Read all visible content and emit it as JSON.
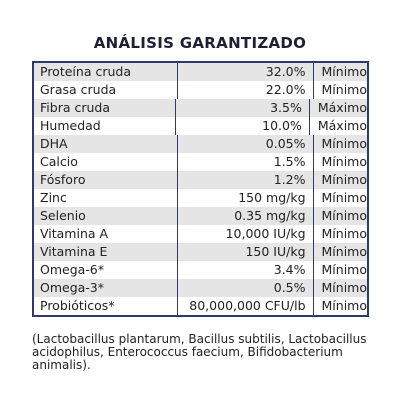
{
  "title": "ANÁLISIS GARANTIZADO",
  "rows": [
    {
      "name": "Proteína cruda",
      "value": "32.0%",
      "type": "Mínimo"
    },
    {
      "name": "Grasa cruda",
      "value": "22.0%",
      "type": "Mínimo"
    },
    {
      "name": "Fibra cruda",
      "value": "3.5%",
      "type": "Máximo"
    },
    {
      "name": "Humedad",
      "value": "10.0%",
      "type": "Máximo"
    },
    {
      "name": "DHA",
      "value": "0.05%",
      "type": "Mínimo"
    },
    {
      "name": "Calcio",
      "value": "1.5%",
      "type": "Mínimo"
    },
    {
      "name": "Fósforo",
      "value": "1.2%",
      "type": "Mínimo"
    },
    {
      "name": "Zinc",
      "value": "150 mg/kg",
      "type": "Mínimo"
    },
    {
      "name": "Selenio",
      "value": "0.35 mg/kg",
      "type": "Mínimo"
    },
    {
      "name": "Vitamina A",
      "value": "10,000 IU/kg",
      "type": "Mínimo"
    },
    {
      "name": "Vitamina E",
      "value": "150 IU/kg",
      "type": "Mínimo"
    },
    {
      "name": "Omega-6*",
      "value": "3.4%",
      "type": "Mínimo"
    },
    {
      "name": "Omega-3*",
      "value": "0.5%",
      "type": "Mínimo"
    },
    {
      "name": "Probióticos*",
      "value": "80,000,000 CFU/lb",
      "type": "Mínimo"
    }
  ],
  "footnote": "(Lactobacillus plantarum, Bacillus subtilis, Lactobacillus acidophilus, Enterococcus faecium, Bifidobacterium animalis)."
}
